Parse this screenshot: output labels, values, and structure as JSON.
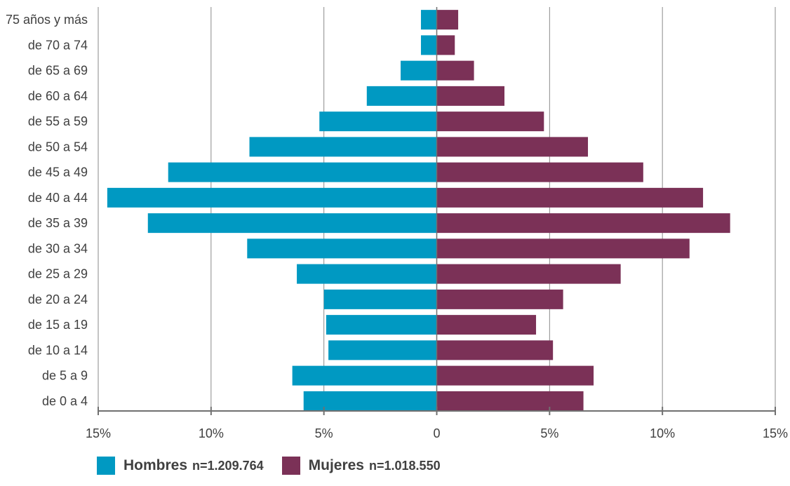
{
  "colors": {
    "hombres": "#0099c2",
    "mujeres": "#7b3157",
    "grid": "#8a8a8a",
    "axis": "#707070",
    "text": "#404040"
  },
  "legend": [
    {
      "name": "Hombres",
      "n": "n=1.209.764",
      "color": "#0099c2"
    },
    {
      "name": "Mujeres",
      "n": "n=1.018.550",
      "color": "#7b3157"
    }
  ],
  "chart_data": {
    "type": "bar",
    "orientation": "horizontal",
    "layout": "population-pyramid",
    "categories": [
      "75 años y más",
      "de 70 a 74",
      "de 65 a 69",
      "de 60 a 64",
      "de 55 a 59",
      "de 50 a 54",
      "de 45 a 49",
      "de 40 a 44",
      "de 35 a 39",
      "de 30 a 34",
      "de 25 a 29",
      "de 20 a 24",
      "de 15 a 19",
      "de 10 a 14",
      "de 5 a 9",
      "de 0 a 4"
    ],
    "series": [
      {
        "name": "Hombres",
        "side": "left",
        "values": [
          0.7,
          0.7,
          1.6,
          3.1,
          5.2,
          8.3,
          11.9,
          14.6,
          12.8,
          8.4,
          6.2,
          5.0,
          4.9,
          4.8,
          6.4,
          5.9
        ]
      },
      {
        "name": "Mujeres",
        "side": "right",
        "values": [
          0.95,
          0.8,
          1.65,
          3.0,
          4.75,
          6.7,
          9.15,
          11.8,
          13.0,
          11.2,
          8.15,
          5.6,
          4.4,
          5.15,
          6.95,
          6.5
        ]
      }
    ],
    "xlim": [
      -15,
      15
    ],
    "x_ticks": [
      -15,
      -10,
      -5,
      0,
      5,
      10,
      15
    ],
    "x_tick_labels": [
      "15%",
      "10%",
      "5%",
      "0",
      "5%",
      "10%",
      "15%"
    ],
    "grid": true,
    "legend_position": "bottom-left",
    "title": "",
    "xlabel": "",
    "ylabel": ""
  }
}
